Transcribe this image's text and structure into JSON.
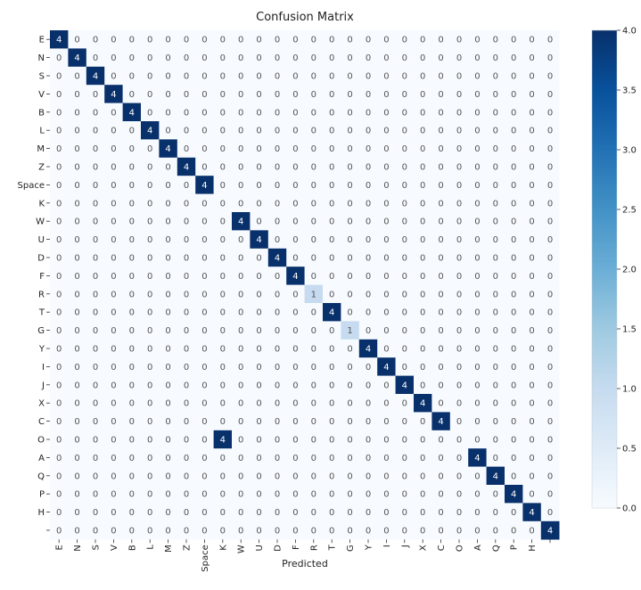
{
  "chart_data": {
    "type": "heatmap",
    "title": "Confusion Matrix",
    "xlabel": "Predicted",
    "ylabel": "",
    "row_labels": [
      "E",
      "N",
      "S",
      "V",
      "B",
      "L",
      "M",
      "Z",
      "Space",
      "K",
      "W",
      "U",
      "D",
      "F",
      "R",
      "T",
      "G",
      "Y",
      "I",
      "J",
      "X",
      "C",
      "O",
      "A",
      "Q",
      "P",
      "H",
      ""
    ],
    "col_labels": [
      "E",
      "N",
      "S",
      "V",
      "B",
      "L",
      "M",
      "Z",
      "Space",
      "K",
      "W",
      "U",
      "D",
      "F",
      "R",
      "T",
      "G",
      "Y",
      "I",
      "J",
      "X",
      "C",
      "O",
      "A",
      "Q",
      "P",
      "H",
      ""
    ],
    "cells": [
      {
        "row": 0,
        "col": 0,
        "value": 4
      },
      {
        "row": 1,
        "col": 1,
        "value": 4
      },
      {
        "row": 2,
        "col": 2,
        "value": 4
      },
      {
        "row": 3,
        "col": 3,
        "value": 4
      },
      {
        "row": 4,
        "col": 4,
        "value": 4
      },
      {
        "row": 5,
        "col": 5,
        "value": 4
      },
      {
        "row": 6,
        "col": 6,
        "value": 4
      },
      {
        "row": 7,
        "col": 7,
        "value": 4
      },
      {
        "row": 8,
        "col": 8,
        "value": 4
      },
      {
        "row": 10,
        "col": 10,
        "value": 4
      },
      {
        "row": 11,
        "col": 11,
        "value": 4
      },
      {
        "row": 12,
        "col": 12,
        "value": 4
      },
      {
        "row": 13,
        "col": 13,
        "value": 4
      },
      {
        "row": 14,
        "col": 14,
        "value": 1
      },
      {
        "row": 15,
        "col": 15,
        "value": 4
      },
      {
        "row": 16,
        "col": 16,
        "value": 1
      },
      {
        "row": 17,
        "col": 17,
        "value": 4
      },
      {
        "row": 18,
        "col": 18,
        "value": 4
      },
      {
        "row": 19,
        "col": 19,
        "value": 4
      },
      {
        "row": 20,
        "col": 20,
        "value": 4
      },
      {
        "row": 21,
        "col": 21,
        "value": 4
      },
      {
        "row": 22,
        "col": 9,
        "value": 4
      },
      {
        "row": 23,
        "col": 23,
        "value": 4
      },
      {
        "row": 24,
        "col": 24,
        "value": 4
      },
      {
        "row": 25,
        "col": 25,
        "value": 4
      },
      {
        "row": 26,
        "col": 26,
        "value": 4
      },
      {
        "row": 27,
        "col": 27,
        "value": 4
      }
    ],
    "default_value": 0,
    "value_range": [
      0,
      4
    ],
    "colormap": "Blues",
    "colors": {
      "low": "#f7fbff",
      "high": "#08306b"
    },
    "colorbar": {
      "ticks": [
        "0.0",
        "0.5",
        "1.0",
        "1.5",
        "2.0",
        "2.5",
        "3.0",
        "3.5",
        "4.0"
      ]
    },
    "grid": false,
    "legend": "colorbar-right"
  }
}
